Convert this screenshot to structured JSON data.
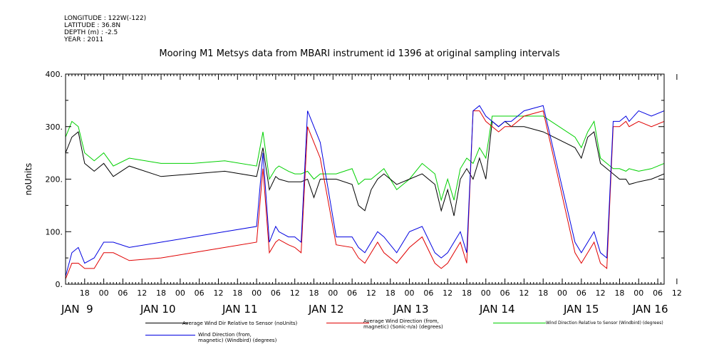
{
  "header": {
    "longitude": "LONGITUDE : 122W(-122)",
    "latitude": "LATITUDE : 36.8N",
    "depth": "DEPTH (m) : -2.5",
    "year": "YEAR : 2011"
  },
  "chart_data": {
    "type": "line",
    "title": "Mooring M1 Metsys data from MBARI instrument id 1396 at original sampling intervals",
    "ylabel": "noUnits",
    "ylim": [
      0,
      400
    ],
    "yticks": [
      0,
      100,
      200,
      300,
      400
    ],
    "ytick_labels": [
      "0.",
      "100.",
      "200.",
      "300.",
      "400."
    ],
    "xlim_hours_from_jan8_12": [
      0,
      188
    ],
    "hour_ticks": [
      "18",
      "00",
      "06",
      "12",
      "18",
      "00",
      "06",
      "12",
      "18",
      "00",
      "06",
      "12",
      "18",
      "00",
      "06",
      "12",
      "18",
      "00",
      "06",
      "12",
      "18",
      "00",
      "06",
      "12",
      "18",
      "00",
      "06",
      "12",
      "18",
      "00",
      "06",
      "12"
    ],
    "day_labels": [
      "JAN  9",
      "JAN 10",
      "JAN 11",
      "JAN 12",
      "JAN 13",
      "JAN 14",
      "JAN 15",
      "JAN 16"
    ],
    "colors": {
      "black": "#000000",
      "red": "#e00000",
      "green": "#00d000",
      "blue": "#0000e0"
    },
    "series": [
      {
        "name": "Average Wind Dir Relative to Sensor (noUnits)",
        "color": "#000000",
        "x": [
          0,
          2,
          4,
          6,
          9,
          12,
          15,
          20,
          30,
          40,
          50,
          60,
          62,
          64,
          66,
          67,
          70,
          72,
          74,
          76,
          78,
          80,
          85,
          90,
          92,
          94,
          96,
          98,
          100,
          104,
          108,
          112,
          116,
          118,
          120,
          122,
          124,
          126,
          128,
          130,
          132,
          134,
          136,
          138,
          140,
          144,
          150,
          160,
          162,
          164,
          166,
          168,
          170,
          172,
          174,
          176,
          177,
          180,
          184,
          188
        ],
        "y": [
          250,
          280,
          290,
          230,
          215,
          230,
          205,
          225,
          205,
          210,
          215,
          205,
          260,
          180,
          205,
          200,
          195,
          195,
          195,
          200,
          165,
          200,
          200,
          190,
          150,
          140,
          180,
          200,
          210,
          190,
          200,
          210,
          190,
          140,
          180,
          130,
          200,
          220,
          200,
          240,
          200,
          310,
          300,
          310,
          300,
          300,
          290,
          260,
          240,
          280,
          290,
          230,
          220,
          210,
          200,
          200,
          190,
          195,
          200,
          210
        ]
      },
      {
        "name": "Average Wind Direction (from, magnetic) (Sonic-n/a) (degrees)",
        "color": "#e00000",
        "x": [
          0,
          2,
          4,
          6,
          9,
          12,
          15,
          20,
          30,
          40,
          50,
          60,
          62,
          64,
          66,
          67,
          70,
          72,
          74,
          76,
          78,
          80,
          85,
          90,
          92,
          94,
          96,
          98,
          100,
          104,
          108,
          112,
          116,
          118,
          120,
          122,
          124,
          126,
          128,
          130,
          132,
          134,
          136,
          138,
          140,
          144,
          150,
          160,
          162,
          164,
          166,
          168,
          170,
          172,
          174,
          176,
          177,
          180,
          184,
          188
        ],
        "y": [
          10,
          40,
          40,
          30,
          30,
          60,
          60,
          45,
          50,
          60,
          70,
          80,
          220,
          60,
          80,
          85,
          75,
          70,
          60,
          300,
          270,
          240,
          75,
          70,
          50,
          40,
          60,
          80,
          60,
          40,
          70,
          90,
          40,
          30,
          40,
          60,
          80,
          40,
          330,
          330,
          310,
          300,
          290,
          300,
          300,
          320,
          330,
          60,
          40,
          60,
          80,
          40,
          30,
          300,
          300,
          310,
          300,
          310,
          300,
          310
        ]
      },
      {
        "name": "Wind Direction Relative to Sensor (Windbird) (degrees)",
        "color": "#00d000",
        "x": [
          0,
          2,
          4,
          6,
          9,
          12,
          15,
          20,
          30,
          40,
          50,
          60,
          62,
          64,
          66,
          67,
          70,
          72,
          74,
          76,
          78,
          80,
          85,
          90,
          92,
          94,
          96,
          98,
          100,
          104,
          108,
          112,
          116,
          118,
          120,
          122,
          124,
          126,
          128,
          130,
          132,
          134,
          136,
          138,
          140,
          144,
          150,
          160,
          162,
          164,
          166,
          168,
          170,
          172,
          174,
          176,
          177,
          180,
          184,
          188
        ],
        "y": [
          280,
          310,
          300,
          250,
          235,
          250,
          225,
          240,
          230,
          230,
          235,
          225,
          290,
          200,
          220,
          225,
          215,
          210,
          210,
          215,
          200,
          210,
          210,
          220,
          190,
          200,
          200,
          210,
          220,
          180,
          200,
          230,
          210,
          160,
          200,
          160,
          220,
          240,
          230,
          260,
          240,
          320,
          320,
          320,
          320,
          320,
          320,
          280,
          260,
          290,
          310,
          240,
          230,
          220,
          220,
          215,
          220,
          215,
          220,
          230
        ]
      },
      {
        "name": "Wind Direction (from, magnetic) (Windbird) (degrees)",
        "color": "#0000e0",
        "x": [
          0,
          2,
          4,
          6,
          9,
          12,
          15,
          20,
          30,
          40,
          50,
          60,
          62,
          64,
          66,
          67,
          70,
          72,
          74,
          76,
          78,
          80,
          85,
          90,
          92,
          94,
          96,
          98,
          100,
          104,
          108,
          112,
          116,
          118,
          120,
          122,
          124,
          126,
          128,
          130,
          132,
          134,
          136,
          138,
          140,
          144,
          150,
          160,
          162,
          164,
          166,
          168,
          170,
          172,
          174,
          176,
          177,
          180,
          184,
          188
        ],
        "y": [
          15,
          60,
          70,
          40,
          50,
          80,
          80,
          70,
          80,
          90,
          100,
          110,
          250,
          80,
          110,
          100,
          90,
          90,
          80,
          330,
          300,
          270,
          90,
          90,
          70,
          60,
          80,
          100,
          90,
          60,
          100,
          110,
          60,
          50,
          60,
          80,
          100,
          60,
          330,
          340,
          320,
          310,
          300,
          310,
          310,
          330,
          340,
          80,
          60,
          80,
          100,
          60,
          50,
          310,
          310,
          320,
          310,
          330,
          320,
          330
        ]
      }
    ],
    "legend": [
      {
        "label": "Average Wind Dir Relative to Sensor (noUnits)",
        "color": "#000000"
      },
      {
        "label": "Average Wind Direction (from,\nmagnetic) (Sonic-n/a) (degrees)",
        "color": "#e00000"
      },
      {
        "label": "Wind Direction Relative to Sensor (Windbird) (degrees)",
        "color": "#00d000"
      },
      {
        "label": "Wind Direction (from,\nmagnetic) (Windbird) (degrees)",
        "color": "#0000e0"
      }
    ],
    "grid": false,
    "legend_placement": "bottom"
  }
}
